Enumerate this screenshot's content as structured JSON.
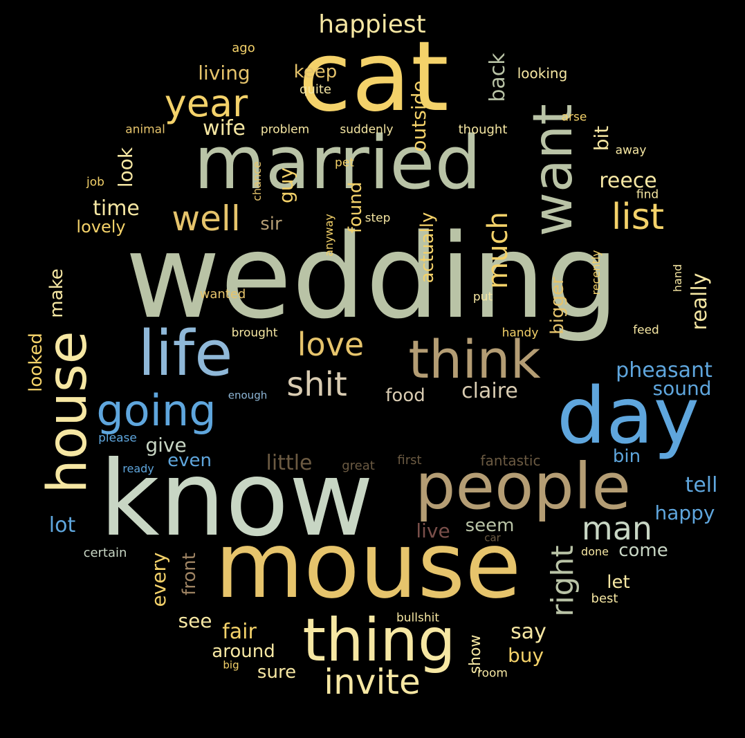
{
  "background": "#000000",
  "colors": {
    "sage": "#b9c3a6",
    "pale_green": "#c8d6c4",
    "yellow": "#f4d26a",
    "gold": "#e6c46c",
    "light_yellow": "#f6e7a3",
    "khaki": "#b49d74",
    "brown": "#9f8463",
    "dark_brown": "#6b5a42",
    "blue": "#5fa6dd",
    "light_blue": "#8fb8d8",
    "maroon": "#7a4f4a",
    "pale": "#d9ccb2"
  },
  "words": [
    {
      "id": "wedding",
      "text": "wedding"
    },
    {
      "id": "know",
      "text": "know"
    },
    {
      "id": "mouse",
      "text": "mouse"
    },
    {
      "id": "cat",
      "text": "cat"
    },
    {
      "id": "married",
      "text": "married"
    },
    {
      "id": "day",
      "text": "day"
    },
    {
      "id": "people",
      "text": "people"
    },
    {
      "id": "thing",
      "text": "thing"
    },
    {
      "id": "life",
      "text": "life"
    },
    {
      "id": "think",
      "text": "think"
    },
    {
      "id": "house",
      "text": "house"
    },
    {
      "id": "want",
      "text": "want"
    },
    {
      "id": "going",
      "text": "going"
    },
    {
      "id": "invite",
      "text": "invite"
    },
    {
      "id": "year",
      "text": "year"
    },
    {
      "id": "list",
      "text": "list"
    },
    {
      "id": "well",
      "text": "well"
    },
    {
      "id": "shit",
      "text": "shit"
    },
    {
      "id": "love",
      "text": "love"
    },
    {
      "id": "man",
      "text": "man"
    },
    {
      "id": "right",
      "text": "right"
    },
    {
      "id": "much",
      "text": "much"
    },
    {
      "id": "happiest",
      "text": "happiest"
    },
    {
      "id": "little",
      "text": "little"
    },
    {
      "id": "claire",
      "text": "claire"
    },
    {
      "id": "pheasant",
      "text": "pheasant"
    },
    {
      "id": "reece",
      "text": "reece"
    },
    {
      "id": "time",
      "text": "time"
    },
    {
      "id": "wife",
      "text": "wife"
    },
    {
      "id": "living",
      "text": "living"
    },
    {
      "id": "keep",
      "text": "keep"
    },
    {
      "id": "back",
      "text": "back"
    },
    {
      "id": "outside",
      "text": "outside"
    },
    {
      "id": "bit",
      "text": "bit"
    },
    {
      "id": "guy",
      "text": "guy"
    },
    {
      "id": "look",
      "text": "look"
    },
    {
      "id": "lovely",
      "text": "lovely"
    },
    {
      "id": "sir",
      "text": "sir"
    },
    {
      "id": "found",
      "text": "found"
    },
    {
      "id": "actually",
      "text": "actually"
    },
    {
      "id": "really",
      "text": "really"
    },
    {
      "id": "food",
      "text": "food"
    },
    {
      "id": "sound",
      "text": "sound"
    },
    {
      "id": "give",
      "text": "give"
    },
    {
      "id": "even",
      "text": "even"
    },
    {
      "id": "tell",
      "text": "tell"
    },
    {
      "id": "happy",
      "text": "happy"
    },
    {
      "id": "lot",
      "text": "lot"
    },
    {
      "id": "live",
      "text": "live"
    },
    {
      "id": "seem",
      "text": "seem"
    },
    {
      "id": "come",
      "text": "come"
    },
    {
      "id": "let",
      "text": "let"
    },
    {
      "id": "say",
      "text": "say"
    },
    {
      "id": "fair",
      "text": "fair"
    },
    {
      "id": "see",
      "text": "see"
    },
    {
      "id": "around",
      "text": "around"
    },
    {
      "id": "sure",
      "text": "sure"
    },
    {
      "id": "buy",
      "text": "buy"
    },
    {
      "id": "every",
      "text": "every"
    },
    {
      "id": "front",
      "text": "front"
    },
    {
      "id": "make",
      "text": "make"
    },
    {
      "id": "looked",
      "text": "looked"
    },
    {
      "id": "bigger",
      "text": "bigger"
    },
    {
      "id": "bin",
      "text": "bin"
    },
    {
      "id": "show",
      "text": "show"
    },
    {
      "id": "ago",
      "text": "ago"
    },
    {
      "id": "looking",
      "text": "looking"
    },
    {
      "id": "quite",
      "text": "quite"
    },
    {
      "id": "animal",
      "text": "animal"
    },
    {
      "id": "problem",
      "text": "problem"
    },
    {
      "id": "suddenly",
      "text": "suddenly"
    },
    {
      "id": "thought",
      "text": "thought"
    },
    {
      "id": "arse",
      "text": "arse"
    },
    {
      "id": "away",
      "text": "away"
    },
    {
      "id": "job",
      "text": "job"
    },
    {
      "id": "chance",
      "text": "chance"
    },
    {
      "id": "pet",
      "text": "pet"
    },
    {
      "id": "find",
      "text": "find"
    },
    {
      "id": "step",
      "text": "step"
    },
    {
      "id": "anyway",
      "text": "anyway"
    },
    {
      "id": "recently",
      "text": "recently"
    },
    {
      "id": "hand",
      "text": "hand"
    },
    {
      "id": "wanted",
      "text": "wanted"
    },
    {
      "id": "put",
      "text": "put"
    },
    {
      "id": "brought",
      "text": "brought"
    },
    {
      "id": "handy",
      "text": "handy"
    },
    {
      "id": "feed",
      "text": "feed"
    },
    {
      "id": "enough",
      "text": "enough"
    },
    {
      "id": "please",
      "text": "please"
    },
    {
      "id": "ready",
      "text": "ready"
    },
    {
      "id": "great",
      "text": "great"
    },
    {
      "id": "first",
      "text": "first"
    },
    {
      "id": "fantastic",
      "text": "fantastic"
    },
    {
      "id": "certain",
      "text": "certain"
    },
    {
      "id": "car",
      "text": "car"
    },
    {
      "id": "done",
      "text": "done"
    },
    {
      "id": "best",
      "text": "best"
    },
    {
      "id": "bullshit",
      "text": "bullshit"
    },
    {
      "id": "big",
      "text": "big"
    },
    {
      "id": "room",
      "text": "room"
    }
  ]
}
